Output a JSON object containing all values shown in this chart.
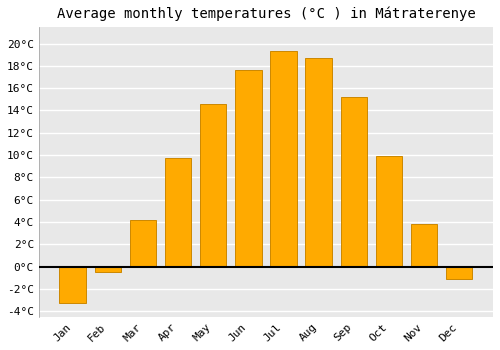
{
  "title": "Average monthly temperatures (°C ) in Mátraterenye",
  "months": [
    "Jan",
    "Feb",
    "Mar",
    "Apr",
    "May",
    "Jun",
    "Jul",
    "Aug",
    "Sep",
    "Oct",
    "Nov",
    "Dec"
  ],
  "values": [
    -3.3,
    -0.5,
    4.2,
    9.7,
    14.6,
    17.6,
    19.3,
    18.7,
    15.2,
    9.9,
    3.8,
    -1.1
  ],
  "bar_color": "#FFAA00",
  "bar_edge_color": "#CC8800",
  "ylim": [
    -4.5,
    21.5
  ],
  "yticks": [
    -4,
    -2,
    0,
    2,
    4,
    6,
    8,
    10,
    12,
    14,
    16,
    18,
    20
  ],
  "ytick_labels": [
    "-4°C",
    "-2°C",
    "0°C",
    "2°C",
    "4°C",
    "6°C",
    "8°C",
    "10°C",
    "12°C",
    "14°C",
    "16°C",
    "18°C",
    "20°C"
  ],
  "fig_background": "#ffffff",
  "axes_background": "#e8e8e8",
  "grid_color": "#ffffff",
  "zero_line_color": "#000000",
  "font_family": "monospace",
  "title_fontsize": 10,
  "tick_fontsize": 8,
  "bar_width": 0.75
}
